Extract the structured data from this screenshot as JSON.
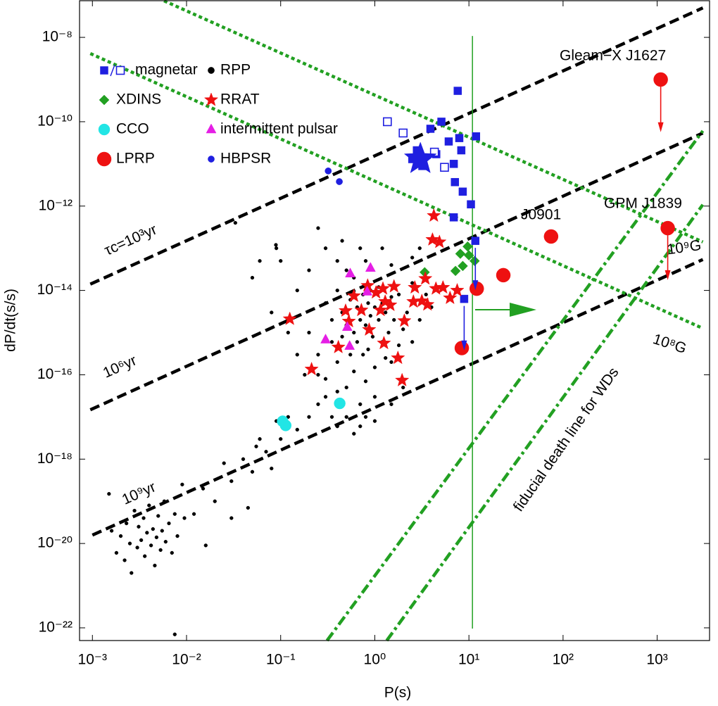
{
  "chart_data": {
    "type": "scatter",
    "x_label": "P(s)",
    "y_label": "dP/dt(s/s)",
    "log_x": true,
    "log_y": true,
    "grid": false,
    "xlim": [
      0.00073,
      3600
    ],
    "ylim": [
      5e-23,
      7.4e-08
    ],
    "xticks": [
      {
        "value": 0.001,
        "label": "10⁻³"
      },
      {
        "value": 0.01,
        "label": "10⁻²"
      },
      {
        "value": 0.1,
        "label": "10⁻¹"
      },
      {
        "value": 1,
        "label": "10⁰"
      },
      {
        "value": 10,
        "label": "10¹"
      },
      {
        "value": 100,
        "label": "10²"
      },
      {
        "value": 1000,
        "label": "10³"
      }
    ],
    "yticks": [
      {
        "value": 1e-08,
        "label": "10⁻⁸"
      },
      {
        "value": 1e-10,
        "label": "10⁻¹⁰"
      },
      {
        "value": 1e-12,
        "label": "10⁻¹²"
      },
      {
        "value": 1e-14,
        "label": "10⁻¹⁴"
      },
      {
        "value": 1e-16,
        "label": "10⁻¹⁶"
      },
      {
        "value": 1e-18,
        "label": "10⁻¹⁸"
      },
      {
        "value": 1e-20,
        "label": "10⁻²⁰"
      },
      {
        "value": 1e-22,
        "label": "10⁻²²"
      }
    ],
    "lines": [
      {
        "style": "dashed",
        "color": "#000000",
        "x": [
          0.00095,
          3055
        ],
        "y": [
          1.41e-14,
          5e-08
        ]
      },
      {
        "style": "dashed",
        "color": "#000000",
        "x": [
          0.00095,
          3055
        ],
        "y": [
          1.48e-17,
          5.4e-11
        ]
      },
      {
        "style": "dashed",
        "color": "#000000",
        "x": [
          0.001,
          3055
        ],
        "y": [
          1.58e-20,
          5.4e-14
        ]
      },
      {
        "style": "dotted",
        "color": "#22a022",
        "x": [
          0.00577,
          3055
        ],
        "y": [
          7.36e-08,
          1.41e-13
        ]
      },
      {
        "style": "dotted",
        "color": "#22a022",
        "x": [
          0.00095,
          3055
        ],
        "y": [
          4.14e-09,
          1.26e-15
        ]
      },
      {
        "style": "dashdot",
        "color": "#22a022",
        "x": [
          0.311,
          3055
        ],
        "y": [
          5e-23,
          6.07e-11
        ]
      },
      {
        "style": "dashdot",
        "color": "#22a022",
        "x": [
          1.34,
          3055
        ],
        "y": [
          5e-23,
          1.08e-12
        ]
      },
      {
        "style": "solid",
        "color": "#22a022",
        "x": [
          10.9,
          10.9
        ],
        "y": [
          1.08e-08,
          9.6e-23
        ]
      }
    ],
    "arrows": [
      {
        "color": "#1f1fe0",
        "x": 11.7,
        "y": [
          1.5e-13,
          1.1e-14
        ]
      },
      {
        "color": "#1f1fe0",
        "x": 8.9,
        "y": [
          6.3e-15,
          4.1e-16
        ]
      },
      {
        "color": "#ee1111",
        "x": 1090,
        "y": [
          1e-09,
          6.1e-11
        ]
      },
      {
        "color": "#ee1111",
        "x": 1294,
        "y": [
          3e-13,
          1.9e-14
        ]
      }
    ],
    "annotations": [
      "Gleam−X J1627",
      "GPM J1839",
      "J0901",
      "τc=10³yr",
      "10⁶yr",
      "10⁹yr",
      "10⁹G",
      "10⁸G",
      "fiducial death line for WDs"
    ],
    "series": [
      {
        "name": "magnetar",
        "color": "#1f1fe0",
        "marker": "square",
        "x": [
          7.6,
          5.1,
          3.9,
          6.1,
          7.9,
          11.9,
          8.3,
          2.8,
          2.5,
          4.5,
          3.2,
          6.9,
          7.1,
          8.6,
          6.9,
          10.5,
          11.7,
          8.9,
          1.36,
          2.0,
          4.3,
          5.5
        ],
        "values": [
          5.4e-10,
          1e-10,
          6.8e-11,
          3.4e-11,
          4.1e-11,
          4.5e-11,
          2.1e-11,
          2.1e-11,
          1.3e-11,
          1.7e-11,
          8.9e-12,
          1e-11,
          3.7e-12,
          2.2e-12,
          5.4e-13,
          1.1e-12,
          1.5e-13,
          6.3e-15,
          1e-10,
          5.4e-11,
          1.9e-11,
          8.3e-12
        ],
        "hollow": [
          false,
          false,
          false,
          false,
          false,
          false,
          false,
          false,
          false,
          false,
          false,
          false,
          false,
          false,
          false,
          false,
          false,
          false,
          true,
          true,
          true,
          true
        ]
      },
      {
        "name": "RPP",
        "color": "#000000",
        "marker": "dot",
        "x": [
          0.0016,
          0.0018,
          0.002,
          0.0022,
          0.0023,
          0.0025,
          0.0026,
          0.0028,
          0.003,
          0.0031,
          0.0033,
          0.0035,
          0.0036,
          0.0038,
          0.004,
          0.0042,
          0.0044,
          0.0046,
          0.0048,
          0.005,
          0.0053,
          0.0055,
          0.0058,
          0.006,
          0.0065,
          0.007,
          0.0075,
          0.008,
          0.009,
          0.0095,
          0.0015,
          0.0075,
          0.012,
          0.015,
          0.02,
          0.025,
          0.03,
          0.04,
          0.05,
          0.06,
          0.07,
          0.08,
          0.09,
          0.03,
          0.045,
          0.055,
          0.1,
          0.12,
          0.15,
          0.016,
          0.2,
          0.25,
          0.3,
          0.3,
          0.35,
          0.35,
          0.4,
          0.4,
          0.4,
          0.45,
          0.45,
          0.5,
          0.5,
          0.5,
          0.55,
          0.55,
          0.6,
          0.6,
          0.6,
          0.65,
          0.65,
          0.7,
          0.7,
          0.7,
          0.75,
          0.75,
          0.8,
          0.8,
          0.85,
          0.85,
          0.9,
          0.9,
          0.95,
          1.0,
          1.0,
          1.0,
          1.1,
          1.1,
          1.2,
          1.2,
          1.3,
          1.3,
          1.4,
          1.5,
          1.5,
          1.6,
          1.8,
          1.8,
          2.0,
          2.2,
          2.5,
          2.5,
          3.0,
          3.5,
          4.0,
          0.25,
          0.3,
          0.2,
          0.15,
          0.1,
          0.09,
          0.08,
          0.12,
          0.15,
          0.05,
          0.06,
          0.033,
          0.089,
          0.25,
          0.3,
          0.35,
          0.4,
          0.5,
          0.6,
          0.8,
          1.0,
          1.5,
          2.0,
          0.2,
          0.18,
          1.2,
          1.5,
          2.5,
          0.8,
          0.4,
          0.45,
          3.0,
          0.25,
          0.7
        ],
        "values": [
          2e-20,
          6e-21,
          1.5e-20,
          4e-21,
          3e-20,
          1e-20,
          2e-21,
          6e-20,
          8e-21,
          2.5e-20,
          1.2e-20,
          4e-20,
          5e-21,
          1.8e-20,
          8e-20,
          9e-21,
          2.2e-20,
          3e-21,
          1.4e-20,
          4.5e-20,
          7e-21,
          2e-20,
          1e-19,
          1.1e-20,
          3e-20,
          6e-21,
          5e-20,
          1.5e-20,
          2.5e-19,
          4e-20,
          1.5e-19,
          7e-23,
          5e-20,
          2e-19,
          1e-19,
          8e-19,
          3e-19,
          1e-18,
          5e-19,
          3e-18,
          1.5e-18,
          6e-19,
          8e-18,
          4e-20,
          7e-20,
          2e-18,
          3e-18,
          1e-17,
          5e-18,
          9e-21,
          1e-15,
          3e-16,
          5e-15,
          8e-17,
          2e-15,
          6e-16,
          1e-14,
          2e-16,
          4e-17,
          3e-15,
          8e-16,
          1.5e-15,
          5e-17,
          3e-14,
          6e-15,
          3e-16,
          1e-15,
          1.2e-16,
          2e-14,
          4e-15,
          6e-16,
          2e-15,
          2e-17,
          1e-13,
          8e-15,
          3e-16,
          1.5e-15,
          7e-17,
          5e-15,
          4e-16,
          2.5e-15,
          1e-14,
          8e-16,
          4e-15,
          1.5e-16,
          3e-17,
          2e-15,
          1.2e-14,
          6e-16,
          5e-15,
          2.5e-16,
          3e-15,
          1e-15,
          7e-15,
          2e-16,
          2e-15,
          5e-16,
          8e-15,
          1.2e-15,
          3e-15,
          6e-16,
          1.5e-14,
          2e-15,
          8e-15,
          4e-15,
          3e-13,
          1e-13,
          3e-14,
          1e-14,
          5e-14,
          1e-13,
          3e-15,
          1e-15,
          3e-16,
          2e-14,
          5e-14,
          4e-13,
          1.2e-13,
          1e-16,
          3e-17,
          1e-17,
          6e-18,
          1e-17,
          4e-18,
          1e-17,
          8e-18,
          2e-17,
          5e-17,
          1e-17,
          1e-16,
          1e-13,
          4e-14,
          6e-14,
          5e-14,
          5e-14,
          1.5e-13,
          1e-13,
          2e-17,
          6e-18
        ]
      },
      {
        "name": "XDINS",
        "color": "#22a022",
        "marker": "diamond",
        "x": [
          3.39,
          7.2,
          8.6,
          8.1,
          9.7,
          11.5,
          10.0
        ],
        "values": [
          2.7e-14,
          2.9e-14,
          3.8e-14,
          7.4e-14,
          1.1e-13,
          5e-14,
          6.8e-14
        ]
      },
      {
        "name": "RRAT",
        "color": "#ee1111",
        "marker": "star",
        "x": [
          0.125,
          0.213,
          0.41,
          0.53,
          0.87,
          1.25,
          1.76,
          1.95,
          0.72,
          0.84,
          1.03,
          1.15,
          1.29,
          1.46,
          2.06,
          2.66,
          2.57,
          3.16,
          3.63,
          3.44,
          4.46,
          5.3,
          6.3,
          7.5,
          4.1,
          4.86,
          4.24,
          1.6,
          0.6,
          0.49,
          1.22
        ],
        "values": [
          2.1e-15,
          1.35e-16,
          4.5e-16,
          1.85e-15,
          1.17e-15,
          5.6e-16,
          2.5e-16,
          7.4e-17,
          3.4e-15,
          1.3e-14,
          8.9e-15,
          3.4e-15,
          5.4e-15,
          4.5e-15,
          1.9e-15,
          1.17e-14,
          5.4e-15,
          5.6e-15,
          4.6e-15,
          1.9e-14,
          1.1e-14,
          1.17e-14,
          6.6e-15,
          1e-14,
          1.6e-13,
          1.4e-13,
          5.9e-13,
          1.24e-14,
          7.4e-15,
          3.3e-15,
          1.1e-14
        ]
      },
      {
        "name": "CCO",
        "color": "#22e5e5",
        "marker": "circle-small",
        "x": [
          0.105,
          0.113,
          0.424
        ],
        "values": [
          7.9e-18,
          6.3e-18,
          2.1e-17
        ]
      },
      {
        "name": "intermittent pulsar",
        "color": "#e51ee5",
        "marker": "triangle",
        "x": [
          0.548,
          0.9,
          0.83,
          0.51,
          0.3,
          0.54
        ],
        "values": [
          2.5e-14,
          3.4e-14,
          9.3e-15,
          1.35e-15,
          6.8e-16,
          4.8e-16
        ]
      },
      {
        "name": "LPRP",
        "color": "#ee1111",
        "marker": "circle",
        "x": [
          1090,
          1294,
          74.6,
          23.2,
          12.1,
          8.4
        ],
        "values": [
          1e-09,
          3e-13,
          1.9e-13,
          2.3e-14,
          1.1e-14,
          4.3e-16
        ]
      },
      {
        "name": "HBPSR",
        "color": "#1f1fe0",
        "marker": "dot-large",
        "x": [
          0.32,
          0.42
        ],
        "values": [
          6.8e-12,
          3.8e-12
        ]
      },
      {
        "color": "#1f1fe0",
        "marker": "star-big",
        "x": [
          3.05
        ],
        "values": [
          1.3e-11
        ]
      }
    ]
  }
}
